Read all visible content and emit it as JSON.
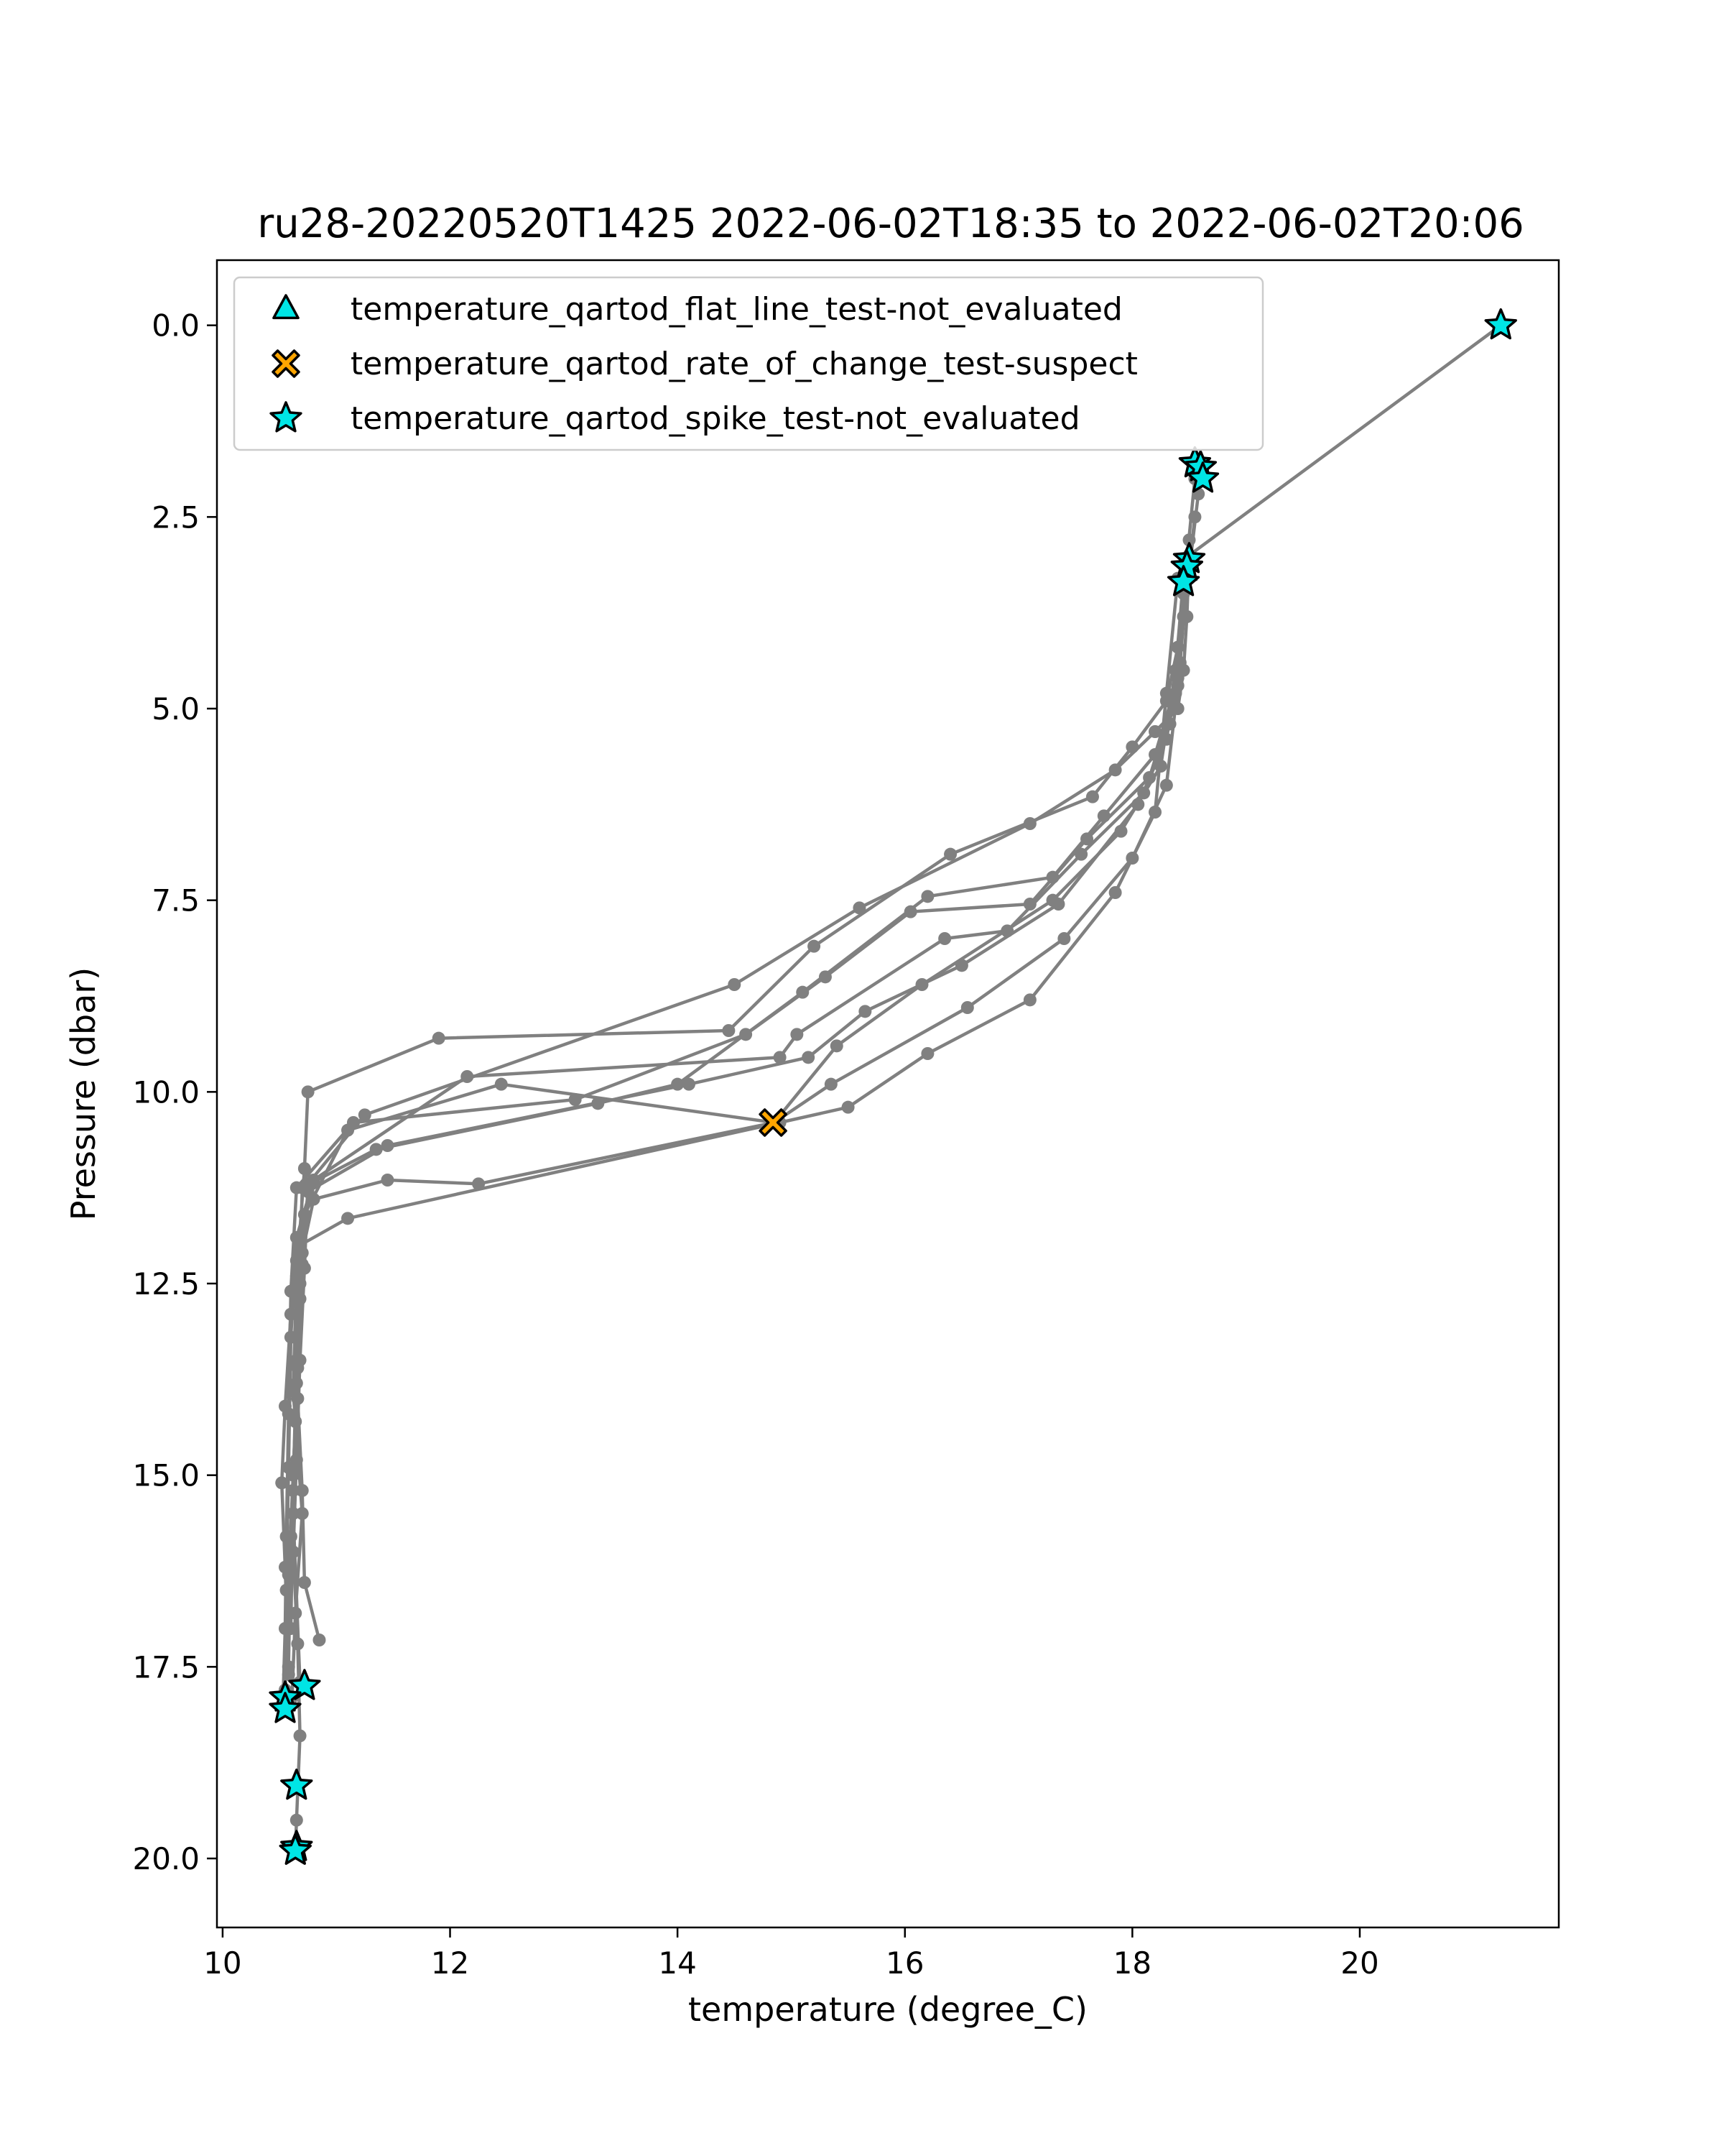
{
  "chart_data": {
    "type": "scatter",
    "title": "ru28-20220520T1425 2022-06-02T18:35 to 2022-06-02T20:06",
    "xlabel": "temperature (degree_C)",
    "ylabel": "Pressure (dbar)",
    "xlim": [
      9.95,
      21.75
    ],
    "ylim": [
      20.9,
      -0.85
    ],
    "y_inverted": true,
    "grid": false,
    "legend_position": "top-left",
    "x_ticks": [
      10,
      12,
      14,
      16,
      18,
      20
    ],
    "x_tick_labels": [
      "10",
      "12",
      "14",
      "16",
      "18",
      "20"
    ],
    "y_ticks": [
      0.0,
      2.5,
      5.0,
      7.5,
      10.0,
      12.5,
      15.0,
      17.5,
      20.0
    ],
    "y_tick_labels": [
      "0.0",
      "2.5",
      "5.0",
      "7.5",
      "10.0",
      "12.5",
      "15.0",
      "17.5",
      "20.0"
    ],
    "profile_color": "#808080",
    "profiles": [
      {
        "x": [
          21.24,
          18.5,
          18.48,
          18.45,
          18.4,
          18.2,
          17.85,
          17.1,
          15.6,
          14.5,
          11.25,
          10.75,
          10.72,
          10.68,
          10.65,
          10.62,
          10.66,
          10.68,
          10.65,
          10.64
        ],
        "y": [
          0.0,
          3.0,
          3.8,
          4.5,
          5.0,
          5.3,
          5.8,
          6.5,
          7.6,
          8.6,
          10.3,
          11.2,
          12.3,
          13.5,
          14.8,
          16.0,
          17.2,
          18.4,
          19.5,
          19.9
        ]
      },
      {
        "x": [
          18.6,
          18.58,
          18.5,
          18.4,
          18.3,
          18.0,
          17.65,
          16.4,
          15.2,
          14.45,
          11.9,
          10.75,
          10.72,
          10.65,
          10.62,
          10.7,
          10.64,
          10.61
        ],
        "y": [
          1.8,
          2.2,
          3.2,
          4.2,
          4.9,
          5.5,
          6.15,
          6.9,
          8.1,
          9.2,
          9.3,
          10.0,
          11.0,
          12.4,
          13.9,
          15.5,
          16.8,
          17.9
        ]
      },
      {
        "x": [
          18.55,
          18.45,
          18.4,
          18.2,
          17.75,
          17.3,
          16.2,
          15.1,
          14.0,
          13.3,
          11.35,
          10.7,
          10.68,
          10.66,
          10.7,
          10.72,
          10.85
        ],
        "y": [
          2.0,
          3.5,
          4.6,
          5.6,
          6.4,
          7.2,
          7.45,
          8.7,
          9.9,
          10.15,
          10.75,
          11.25,
          12.5,
          14.0,
          15.2,
          16.4,
          17.15
        ]
      },
      {
        "x": [
          18.55,
          18.45,
          18.38,
          18.15,
          17.6,
          17.1,
          16.05,
          15.3,
          14.6,
          13.1,
          11.15,
          10.65,
          10.6,
          10.58,
          10.56,
          10.55,
          10.53
        ],
        "y": [
          2.5,
          3.8,
          4.8,
          5.9,
          6.7,
          7.55,
          7.65,
          8.5,
          9.25,
          10.1,
          10.4,
          11.25,
          12.6,
          14.2,
          15.8,
          17.0,
          18.0
        ]
      },
      {
        "x": [
          18.5,
          18.4,
          18.33,
          18.1,
          17.55,
          16.9,
          16.35,
          15.05,
          14.9,
          12.15,
          10.8,
          10.65,
          10.6,
          10.58,
          10.56,
          10.55
        ],
        "y": [
          2.8,
          4.2,
          5.2,
          6.1,
          6.9,
          7.9,
          8.0,
          9.25,
          9.55,
          9.8,
          11.15,
          11.9,
          13.2,
          14.9,
          16.5,
          17.95
        ]
      },
      {
        "x": [
          18.5,
          18.42,
          18.3,
          18.05,
          17.35,
          16.5,
          15.65,
          15.15,
          14.1,
          11.45,
          10.75,
          10.7,
          10.66,
          10.62,
          10.58,
          10.55
        ],
        "y": [
          3.0,
          4.4,
          5.4,
          6.25,
          7.55,
          8.35,
          8.95,
          9.55,
          9.9,
          10.7,
          11.3,
          12.25,
          13.6,
          15.0,
          16.3,
          17.8
        ]
      },
      {
        "x": [
          18.45,
          18.38,
          18.25,
          17.9,
          17.3,
          16.15,
          15.4,
          14.85,
          12.45,
          11.1,
          10.72,
          10.68,
          10.64,
          10.6,
          10.58
        ],
        "y": [
          3.3,
          4.5,
          5.75,
          6.6,
          7.5,
          8.6,
          9.4,
          10.4,
          9.9,
          10.5,
          11.6,
          12.7,
          14.3,
          15.8,
          17.5
        ]
      },
      {
        "x": [
          18.45,
          18.4,
          18.3,
          18.0,
          17.4,
          16.55,
          15.35,
          14.85,
          12.25,
          11.45,
          10.8,
          10.7,
          10.65,
          10.62,
          10.68
        ],
        "y": [
          3.35,
          4.7,
          6.0,
          6.95,
          8.0,
          8.9,
          9.9,
          10.4,
          11.2,
          11.15,
          11.4,
          12.1,
          13.8,
          15.5,
          17.7
        ]
      },
      {
        "x": [
          18.4,
          18.3,
          18.2,
          17.85,
          17.1,
          16.2,
          15.5,
          14.9,
          11.1,
          10.68,
          10.65,
          10.62,
          10.6
        ],
        "y": [
          3.3,
          4.8,
          6.35,
          7.4,
          8.8,
          9.5,
          10.2,
          10.4,
          11.65,
          12.0,
          13.5,
          15.2,
          17.0
        ]
      },
      {
        "x": [
          10.65,
          10.6,
          10.55,
          10.52,
          10.55,
          10.58
        ],
        "y": [
          12.2,
          12.9,
          14.1,
          15.1,
          16.2,
          17.6
        ]
      }
    ],
    "series": [
      {
        "name": "temperature_qartod_flat_line_test-not_evaluated",
        "marker": "triangle",
        "color": "#00e5e5",
        "x": [],
        "y": []
      },
      {
        "name": "temperature_qartod_rate_of_change_test-suspect",
        "marker": "x",
        "color": "#ffa500",
        "x": [
          14.84
        ],
        "y": [
          10.4
        ]
      },
      {
        "name": "temperature_qartod_spike_test-not_evaluated",
        "marker": "star",
        "color": "#00e5e5",
        "x": [
          21.24,
          18.55,
          18.6,
          18.62,
          18.5,
          18.48,
          18.45,
          10.72,
          10.55,
          10.55,
          10.65,
          10.65,
          10.64
        ],
        "y": [
          0.0,
          1.8,
          1.85,
          2.0,
          3.05,
          3.15,
          3.35,
          17.75,
          17.9,
          18.05,
          19.05,
          19.85,
          19.9
        ]
      }
    ]
  }
}
